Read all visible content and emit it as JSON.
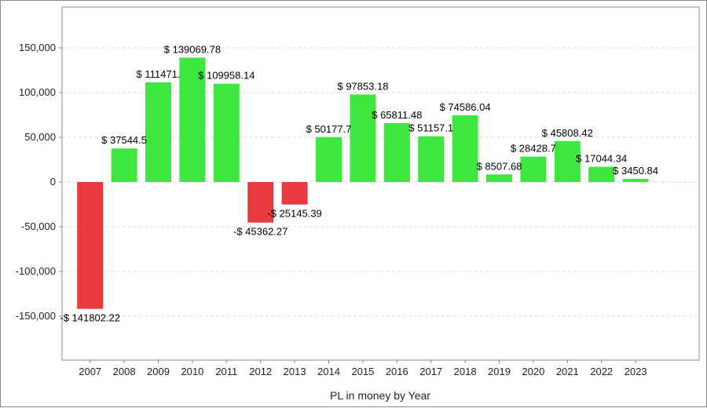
{
  "chart_data": {
    "type": "bar",
    "title": "",
    "xlabel": "PL in money by Year",
    "ylabel": "",
    "categories": [
      "2007",
      "2008",
      "2009",
      "2010",
      "2011",
      "2012",
      "2013",
      "2014",
      "2015",
      "2016",
      "2017",
      "2018",
      "2019",
      "2020",
      "2021",
      "2022",
      "2023"
    ],
    "values": [
      -141802.22,
      37544.5,
      111471,
      139069.78,
      109958.14,
      -45362.27,
      -25145.39,
      50177.7,
      97853.18,
      65811.48,
      51157.1,
      74586.04,
      8507.68,
      28428.7,
      45808.42,
      17044.34,
      3450.84
    ],
    "data_labels": [
      "-$ 141802.22",
      "$ 37544.5",
      "$ 111471.",
      "$ 139069.78",
      "$ 109958.14",
      "-$ 45362.27",
      "-$ 25145.39",
      "$ 50177.7",
      "$ 97853.18",
      "$ 65811.48",
      "$ 51157.1",
      "$ 74586.04",
      "$ 8507.68",
      "$ 28428.7",
      "$ 45808.42",
      "$ 17044.34",
      "$ 3450.84"
    ],
    "y_ticks": [
      150000,
      100000,
      50000,
      0,
      -50000,
      -100000,
      -150000
    ],
    "y_tick_labels": [
      "150,000",
      "100,000",
      "50,000",
      "0",
      "-50,000",
      "-100,000",
      "-150,000"
    ],
    "ylim": [
      -200000,
      200000
    ],
    "grid": true,
    "legend": "none",
    "colors": {
      "positive": "#3ee63e",
      "negative": "#e63a3e",
      "grid": "#d8d8d8",
      "axis": "#888888"
    }
  }
}
